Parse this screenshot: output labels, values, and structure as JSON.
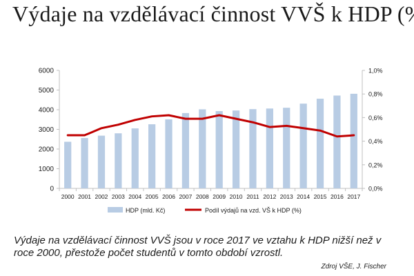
{
  "title": "Výdaje na vzdělávací činnost VVŠ k HDP (%)",
  "caption": "Výdaje na vzdělávací činnost VVŠ jsou v roce 2017 ve vztahu k HDP nižší než v roce 2000, přestože počet studentů v tomto období vzrostl.",
  "source": "Zdroj VŠE, J. Fischer",
  "colors": {
    "bar": "#b8cce4",
    "line": "#c00000",
    "axis": "#bfbfbf",
    "text": "#1a1a1a"
  },
  "chart_data": {
    "type": "bar",
    "categories": [
      "2000",
      "2001",
      "2002",
      "2003",
      "2004",
      "2005",
      "2006",
      "2007",
      "2008",
      "2009",
      "2010",
      "2011",
      "2012",
      "2013",
      "2014",
      "2015",
      "2016",
      "2017"
    ],
    "series": [
      {
        "name": "HDP (mld. Kč)",
        "type": "bar",
        "axis": "left",
        "values": [
          2370,
          2560,
          2680,
          2800,
          3050,
          3260,
          3510,
          3830,
          4020,
          3930,
          3960,
          4030,
          4060,
          4100,
          4310,
          4560,
          4720,
          4810
        ]
      },
      {
        "name": "Podíl výdajů na vzd. VŠ k HDP (%)",
        "type": "line",
        "axis": "right",
        "values": [
          0.45,
          0.45,
          0.51,
          0.54,
          0.58,
          0.61,
          0.62,
          0.59,
          0.59,
          0.62,
          0.59,
          0.56,
          0.52,
          0.53,
          0.51,
          0.49,
          0.44,
          0.45
        ]
      }
    ],
    "y_left": {
      "ylim": [
        0,
        6000
      ],
      "ticks": [
        0,
        1000,
        2000,
        3000,
        4000,
        5000,
        6000
      ],
      "tick_labels": [
        "0",
        "1000",
        "2000",
        "3000",
        "4000",
        "5000",
        "6000"
      ]
    },
    "y_right": {
      "ylim": [
        0,
        1.0
      ],
      "ticks": [
        0,
        0.2,
        0.4,
        0.6,
        0.8,
        1.0
      ],
      "tick_labels": [
        "0,0%",
        "0,2%",
        "0,4%",
        "0,6%",
        "0,8%",
        "1,0%"
      ]
    },
    "grid": false,
    "legend": "bottom"
  }
}
